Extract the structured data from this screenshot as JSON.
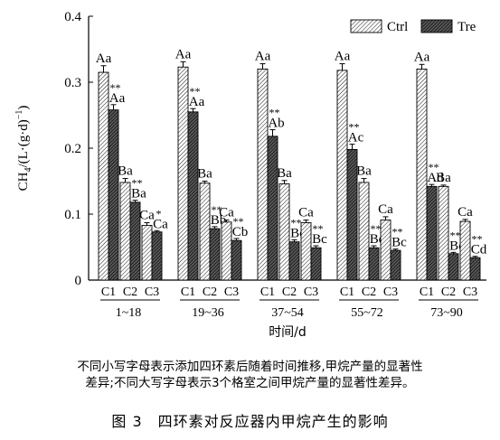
{
  "chart_data": {
    "type": "bar",
    "ylabel": "CH4/(L·(g·d)-1)",
    "ylabel_parts": {
      "base": "CH",
      "sub": "4",
      "mid": "/(L·(g·d)",
      "sup": "−1",
      "end": ")"
    },
    "xlabel": "时间/d",
    "ylim": [
      0,
      0.4
    ],
    "yticks": [
      "0",
      "0.1",
      "0.2",
      "0.3",
      "0.4"
    ],
    "groups": [
      "1~18",
      "19~36",
      "37~54",
      "55~72",
      "73~90"
    ],
    "compartments": [
      "C1",
      "C2",
      "C3"
    ],
    "legend": {
      "position": "top-right"
    },
    "series": [
      {
        "name": "Ctrl",
        "pattern": "light-hatch",
        "values": [
          [
            0.315,
            0.148,
            0.083
          ],
          [
            0.323,
            0.147,
            0.088
          ],
          [
            0.32,
            0.146,
            0.087
          ],
          [
            0.318,
            0.148,
            0.091
          ],
          [
            0.32,
            0.142,
            0.089
          ]
        ],
        "errors": [
          [
            0.01,
            0.006,
            0.004
          ],
          [
            0.008,
            0.003,
            0.003
          ],
          [
            0.008,
            0.005,
            0.004
          ],
          [
            0.01,
            0.006,
            0.005
          ],
          [
            0.007,
            0.002,
            0.003
          ]
        ],
        "labels": [
          [
            "Aa",
            "Ba",
            "Ca"
          ],
          [
            "Aa",
            "Ba",
            "Ca"
          ],
          [
            "Aa",
            "Ba",
            "Ca"
          ],
          [
            "Aa",
            "Ba",
            "Ca"
          ],
          [
            "Aa",
            "Ba",
            "Ca"
          ]
        ]
      },
      {
        "name": "Tre",
        "pattern": "dark-hatch",
        "values": [
          [
            0.258,
            0.118,
            0.073
          ],
          [
            0.255,
            0.078,
            0.06
          ],
          [
            0.218,
            0.058,
            0.049
          ],
          [
            0.198,
            0.049,
            0.045
          ],
          [
            0.142,
            0.04,
            0.034
          ]
        ],
        "errors": [
          [
            0.008,
            0.003,
            0.002
          ],
          [
            0.005,
            0.003,
            0.003
          ],
          [
            0.01,
            0.003,
            0.003
          ],
          [
            0.008,
            0.003,
            0.002
          ],
          [
            0.003,
            0.002,
            0.002
          ]
        ],
        "labels": [
          [
            "Aa",
            "Ba",
            "Ca"
          ],
          [
            "Aa",
            "Bb",
            "Cb"
          ],
          [
            "Ab",
            "Bc",
            "Bc"
          ],
          [
            "Ac",
            "Bd",
            "Bc"
          ],
          [
            "Ad",
            "Be",
            "Cd"
          ]
        ],
        "stars": [
          [
            "**",
            "**",
            "*"
          ],
          [
            "**",
            "**",
            "**"
          ],
          [
            "**",
            "**",
            "**"
          ],
          [
            "**",
            "**",
            "**"
          ],
          [
            "**",
            "**",
            "**"
          ]
        ]
      }
    ]
  },
  "notes": {
    "line1": "不同小写字母表示添加四环素后随着时间推移,甲烷产量的显著性",
    "line2": "差异;不同大写字母表示3个格室之间甲烷产量的显著性差异。"
  },
  "caption": "图 3　四环素对反应器内甲烷产生的影响"
}
